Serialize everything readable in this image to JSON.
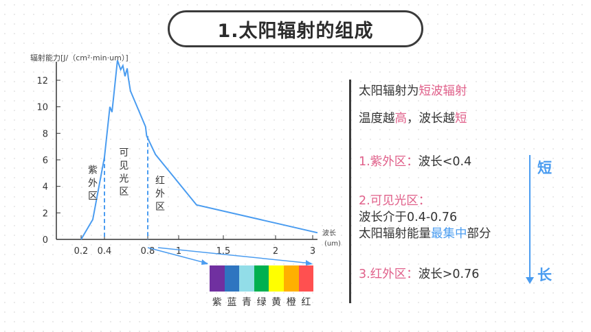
{
  "title": "1.太阳辐射的组成",
  "chart_data": {
    "type": "line",
    "ylabel": "辐射能力[J/（cm²·min·um）]",
    "xlabel": "波长",
    "xunit": "(um)",
    "ylim": [
      0,
      12.5
    ],
    "yticks": [
      0,
      2,
      4,
      6,
      8,
      10,
      12
    ],
    "xticks": [
      {
        "value": 0.2,
        "label": "0.2"
      },
      {
        "value": 0.4,
        "label": "0.4"
      },
      {
        "value": 0.8,
        "label": "0.8"
      },
      {
        "value": 1.0,
        "label": "1"
      },
      {
        "value": 1.5,
        "label": "1.5"
      },
      {
        "value": 2.0,
        "label": "2"
      },
      {
        "value": 3.0,
        "label": "3"
      }
    ],
    "series": [
      {
        "points": [
          [
            0.2,
            0
          ],
          [
            0.3,
            1.5
          ],
          [
            0.4,
            6.2
          ],
          [
            0.45,
            10
          ],
          [
            0.47,
            9.6
          ],
          [
            0.52,
            13.5
          ],
          [
            0.55,
            12.8
          ],
          [
            0.57,
            13.1
          ],
          [
            0.59,
            12.3
          ],
          [
            0.61,
            12.9
          ],
          [
            0.62,
            12.2
          ],
          [
            0.64,
            11.2
          ],
          [
            0.78,
            8.5
          ],
          [
            0.79,
            7.8
          ],
          [
            0.85,
            6.4
          ],
          [
            1.2,
            2.6
          ],
          [
            2.2,
            1.1
          ],
          [
            3.1,
            0.5
          ]
        ]
      }
    ],
    "dividers": [
      0.4,
      0.76
    ],
    "regions": [
      {
        "name": "紫外区",
        "x": 0.3,
        "y": 5.0
      },
      {
        "name": "可见光区",
        "x": 0.58,
        "y": 6.3
      },
      {
        "name": "红外区",
        "x": 0.88,
        "y": 4.2
      }
    ]
  },
  "spectrum": {
    "colors": [
      "#7030a0",
      "#2e75c0",
      "#92dde8",
      "#00b050",
      "#ffff00",
      "#ffb000",
      "#ff5050"
    ],
    "labels": [
      "紫",
      "蓝",
      "青",
      "绿",
      "黄",
      "橙",
      "红"
    ]
  },
  "notes": {
    "line1_prefix": "太阳辐射为",
    "line1_highlight": "短波辐射",
    "line2_a": "温度越",
    "line2_b": "高",
    "line2_c": "，波长越",
    "line2_d": "短",
    "uv_label": "1.紫外区：",
    "uv_text": "波长<0.4",
    "vis_label": "2.可见光区：",
    "vis_range": "波长介于0.4-0.76",
    "vis_energy_a": "太阳辐射能量",
    "vis_energy_b": "最集中",
    "vis_energy_c": "部分",
    "ir_label": "3.红外区：",
    "ir_text": "波长>0.76",
    "short": "短",
    "long": "长"
  }
}
